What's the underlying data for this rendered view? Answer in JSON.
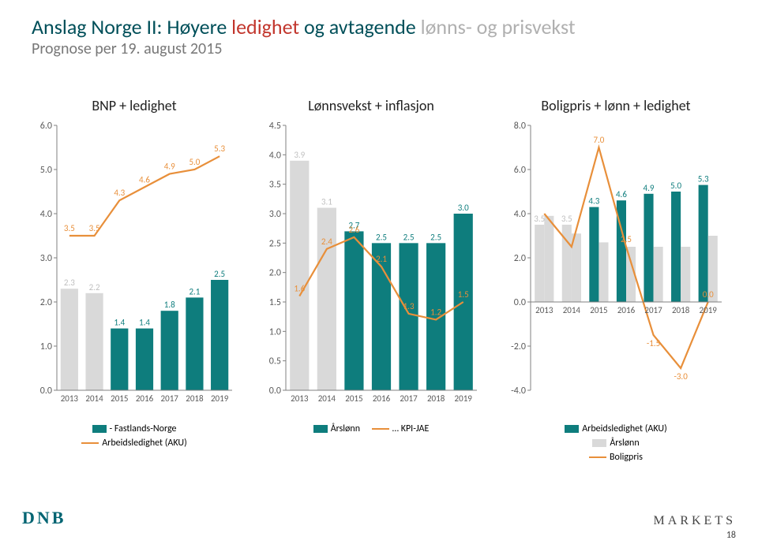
{
  "title": {
    "part1": "Anslag Norge II: Høyere ",
    "part2": "ledighet",
    "part3": " og avtagende ",
    "part4": "lønns- og prisvekst"
  },
  "subtitle": "Prognose per 19. august 2015",
  "footer": {
    "brand": "DNB",
    "markets": "MARKETS",
    "page": "18"
  },
  "years": [
    "2013",
    "2014",
    "2015",
    "2016",
    "2017",
    "2018",
    "2019"
  ],
  "colors": {
    "teal": "#0e7d7d",
    "orange": "#e88f3a",
    "lightgray": "#d9d9d9",
    "axis": "#808080",
    "grid": "#bdbdbd",
    "text": "#595959"
  },
  "chart1": {
    "title": "BNP + ledighet",
    "ylim": [
      0,
      6
    ],
    "ytick": 1.0,
    "bars": {
      "label": "- Fastlands-Norge",
      "color": "#0e7d7d",
      "values": [
        2.3,
        2.2,
        1.4,
        1.4,
        1.8,
        2.1,
        2.5
      ],
      "hcolor": [
        "#d9d9d9",
        "#d9d9d9",
        "#0e7d7d",
        "#0e7d7d",
        "#0e7d7d",
        "#0e7d7d",
        "#0e7d7d"
      ]
    },
    "line": {
      "label": "Arbeidsledighet (AKU)",
      "color": "#e88f3a",
      "values": [
        3.5,
        3.5,
        4.3,
        4.6,
        4.9,
        5.0,
        5.3
      ]
    }
  },
  "chart2": {
    "title": "Lønnsvekst + inflasjon",
    "ylim": [
      0,
      4.5
    ],
    "ytick": 0.5,
    "bars": {
      "label": "Årslønn",
      "color": "#0e7d7d",
      "values": [
        3.9,
        3.1,
        2.7,
        2.5,
        2.5,
        2.5,
        3.0
      ],
      "hcolor": [
        "#d9d9d9",
        "#d9d9d9",
        "#0e7d7d",
        "#0e7d7d",
        "#0e7d7d",
        "#0e7d7d",
        "#0e7d7d"
      ]
    },
    "line": {
      "label": "… KPI-JAE",
      "color": "#e88f3a",
      "values": [
        1.6,
        2.4,
        2.6,
        2.1,
        1.3,
        1.2,
        1.5
      ]
    }
  },
  "chart3": {
    "title": "Boligpris + lønn + ledighet",
    "ylim": [
      -4,
      8
    ],
    "ytick": 2.0,
    "bars": {
      "label": "Arbeidsledighet (AKU)",
      "color": "#0e7d7d",
      "values": [
        3.5,
        3.5,
        4.3,
        4.6,
        4.9,
        5.0,
        5.3
      ],
      "hcolor": [
        "#d9d9d9",
        "#d9d9d9",
        "#0e7d7d",
        "#0e7d7d",
        "#0e7d7d",
        "#0e7d7d",
        "#0e7d7d"
      ]
    },
    "bars2": {
      "label": "Årslønn",
      "color": "#d9d9d9",
      "values": [
        3.9,
        3.1,
        2.7,
        2.5,
        2.5,
        2.5,
        3.0
      ]
    },
    "line": {
      "label": "Boligpris",
      "color": "#e88f3a",
      "values": [
        4.0,
        2.5,
        7.0,
        2.5,
        -1.5,
        -3.0,
        0.0
      ]
    },
    "sparseLabels": [
      null,
      null,
      "7.0",
      "2.5",
      "-1.5",
      "-3.0",
      "0.0"
    ]
  }
}
